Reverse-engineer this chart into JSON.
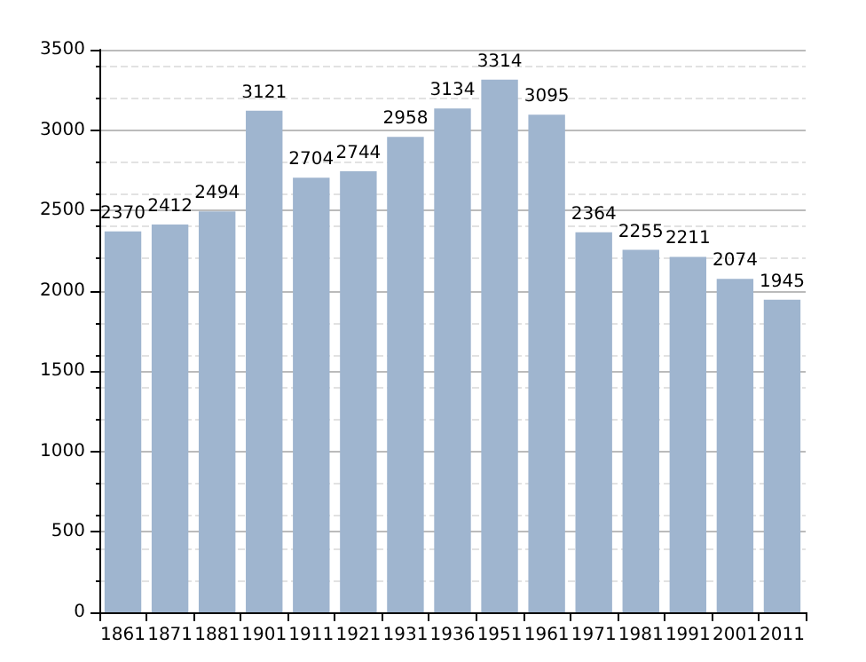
{
  "chart_data": {
    "type": "bar",
    "categories": [
      "1861",
      "1871",
      "1881",
      "1901",
      "1911",
      "1921",
      "1931",
      "1936",
      "1951",
      "1961",
      "1971",
      "1981",
      "1991",
      "2001",
      "2011"
    ],
    "values": [
      2370,
      2412,
      2494,
      3121,
      2704,
      2744,
      2958,
      3134,
      3314,
      3095,
      2364,
      2255,
      2211,
      2074,
      1945
    ],
    "color": "#9fb5cf",
    "ylim": [
      0,
      3500
    ],
    "yticks": [
      0,
      500,
      1000,
      1500,
      2000,
      2500,
      3000,
      3500
    ],
    "grid": "y",
    "data_labels": true
  }
}
